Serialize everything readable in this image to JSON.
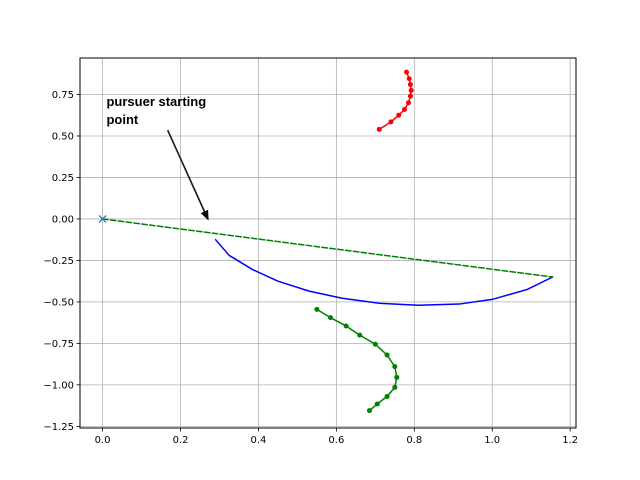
{
  "chart_data": {
    "type": "line",
    "title": "",
    "xlabel": "",
    "ylabel": "",
    "xlim": [
      -0.058,
      1.215
    ],
    "ylim": [
      -1.26,
      0.97
    ],
    "x_ticks": [
      0.0,
      0.2,
      0.4,
      0.6,
      0.8,
      1.0,
      1.2
    ],
    "x_tick_labels": [
      "0.0",
      "0.2",
      "0.4",
      "0.6",
      "0.8",
      "1.0",
      "1.2"
    ],
    "y_ticks": [
      0.75,
      0.5,
      0.25,
      0.0,
      -0.25,
      -0.5,
      -0.75,
      -1.0,
      -1.25
    ],
    "y_tick_labels": [
      "0.75",
      "0.50",
      "0.25",
      "0.00",
      "−0.25",
      "−0.50",
      "−0.75",
      "−1.00",
      "−1.25"
    ],
    "grid": true,
    "series": [
      {
        "kind": "line",
        "color": "#0000ff",
        "dash": false,
        "marker": "none",
        "x": [
          0.29,
          0.325,
          0.385,
          0.45,
          0.53,
          0.615,
          0.71,
          0.81,
          0.915,
          1.0,
          1.09,
          1.155
        ],
        "y": [
          -0.125,
          -0.22,
          -0.305,
          -0.375,
          -0.435,
          -0.478,
          -0.508,
          -0.52,
          -0.513,
          -0.485,
          -0.425,
          -0.35
        ]
      },
      {
        "kind": "line",
        "color": "#008000",
        "dash": true,
        "marker": "none",
        "x": [
          0.0,
          1.155
        ],
        "y": [
          0.0,
          -0.35
        ]
      },
      {
        "kind": "line",
        "color": "#ff0000",
        "dash": false,
        "marker": "dot",
        "x": [
          0.71,
          0.74,
          0.76,
          0.775,
          0.785,
          0.79,
          0.792,
          0.79,
          0.787,
          0.78
        ],
        "y": [
          0.54,
          0.585,
          0.625,
          0.66,
          0.7,
          0.74,
          0.775,
          0.81,
          0.845,
          0.885
        ]
      },
      {
        "kind": "line",
        "color": "#008000",
        "dash": false,
        "marker": "dot",
        "x": [
          0.55,
          0.585,
          0.625,
          0.66,
          0.7,
          0.73,
          0.75,
          0.755,
          0.75,
          0.73,
          0.705,
          0.685
        ],
        "y": [
          -0.545,
          -0.595,
          -0.645,
          -0.7,
          -0.755,
          -0.82,
          -0.89,
          -0.955,
          -1.015,
          -1.07,
          -1.115,
          -1.155
        ]
      },
      {
        "kind": "marker",
        "color": "#1f77b4",
        "marker": "x",
        "x": [
          0.0
        ],
        "y": [
          0.0
        ]
      }
    ],
    "annotations": [
      {
        "lines": [
          "pursuer starting",
          "point"
        ],
        "text_x": 0.01,
        "text_y": 0.68,
        "arrow_from_x": 0.167,
        "arrow_from_y": 0.535,
        "arrow_to_x": 0.272,
        "arrow_to_y": -0.01
      }
    ]
  }
}
